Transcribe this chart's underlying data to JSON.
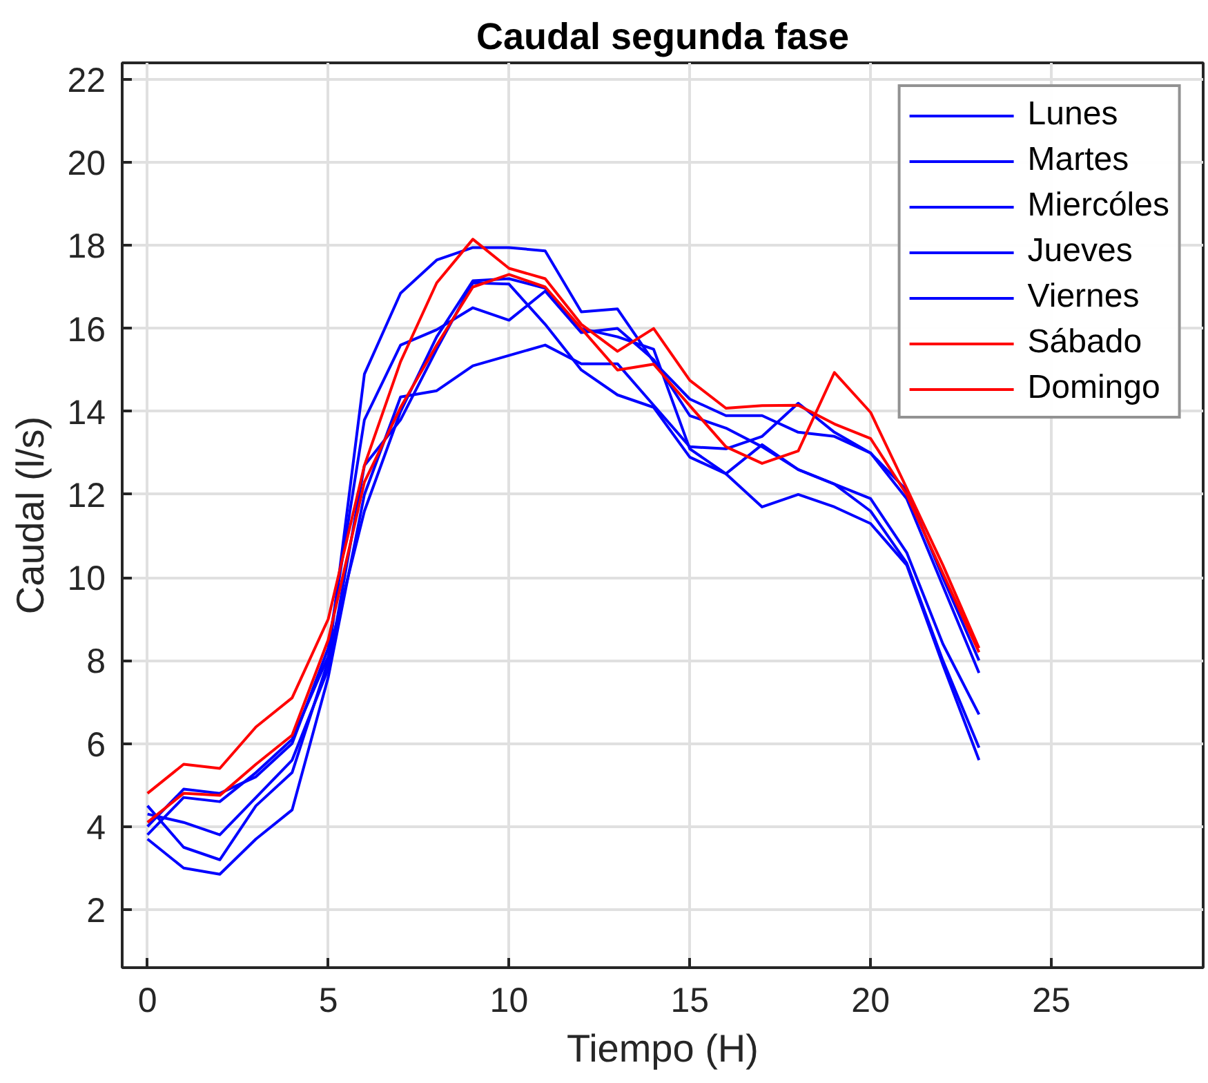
{
  "chart_data": {
    "type": "line",
    "title": "Caudal segunda fase",
    "xlabel": "Tiempo (H)",
    "ylabel": "Caudal (l/s)",
    "x": [
      0,
      1,
      2,
      3,
      4,
      5,
      6,
      7,
      8,
      9,
      10,
      11,
      12,
      13,
      14,
      15,
      16,
      17,
      18,
      19,
      20,
      21,
      22,
      23
    ],
    "xlim": [
      -0.7,
      29.2
    ],
    "ylim": [
      0.6,
      22.4
    ],
    "xticks": [
      0,
      5,
      10,
      15,
      20,
      25
    ],
    "yticks": [
      2,
      4,
      6,
      8,
      10,
      12,
      14,
      16,
      18,
      20,
      22
    ],
    "grid": true,
    "legend": "top right",
    "series": [
      {
        "name": "Lunes",
        "color": "#0000ff",
        "values": [
          4.5,
          3.5,
          3.2,
          4.5,
          5.3,
          8.0,
          14.9,
          16.85,
          17.65,
          17.95,
          17.95,
          17.87,
          16.4,
          16.47,
          15.2,
          14.3,
          13.9,
          13.9,
          13.5,
          13.4,
          13.0,
          11.9,
          9.8,
          7.7
        ]
      },
      {
        "name": "Martes",
        "color": "#0000ff",
        "values": [
          3.7,
          3.0,
          2.85,
          3.7,
          4.4,
          7.6,
          12.0,
          14.35,
          14.5,
          15.1,
          15.35,
          15.6,
          15.15,
          15.15,
          14.15,
          13.15,
          13.1,
          13.4,
          14.2,
          13.5,
          13.0,
          12.1,
          10.0,
          8.0
        ]
      },
      {
        "name": "Miercóles",
        "color": "#0000ff",
        "values": [
          4.0,
          4.9,
          4.8,
          5.2,
          6.0,
          8.3,
          13.8,
          15.6,
          15.97,
          16.5,
          16.2,
          16.9,
          15.9,
          16.0,
          15.25,
          13.9,
          13.6,
          13.15,
          12.6,
          12.25,
          11.9,
          10.6,
          8.4,
          6.7
        ]
      },
      {
        "name": "Jueves",
        "color": "#0000ff",
        "values": [
          4.3,
          4.1,
          3.8,
          4.7,
          5.6,
          7.8,
          12.7,
          13.8,
          15.5,
          17.1,
          17.07,
          16.1,
          15.0,
          14.4,
          14.1,
          12.9,
          12.5,
          13.2,
          12.6,
          12.25,
          11.6,
          10.35,
          8.0,
          5.9
        ]
      },
      {
        "name": "Viernes",
        "color": "#0000ff",
        "values": [
          3.8,
          4.7,
          4.6,
          5.3,
          6.1,
          8.1,
          11.6,
          14.0,
          15.8,
          17.15,
          17.2,
          16.97,
          16.0,
          15.8,
          15.5,
          13.1,
          12.5,
          11.7,
          12.0,
          11.7,
          11.3,
          10.3,
          7.9,
          5.6
        ]
      },
      {
        "name": "Sábado",
        "color": "#ff0000",
        "values": [
          4.8,
          5.5,
          5.4,
          6.4,
          7.1,
          9.0,
          12.7,
          15.2,
          17.1,
          18.15,
          17.45,
          17.2,
          16.1,
          15.45,
          16.0,
          14.75,
          14.08,
          14.14,
          14.15,
          13.7,
          13.35,
          12.0,
          10.1,
          8.2
        ]
      },
      {
        "name": "Domingo",
        "color": "#ff0000",
        "values": [
          4.1,
          4.8,
          4.75,
          5.5,
          6.2,
          8.5,
          12.3,
          14.1,
          15.6,
          17.0,
          17.3,
          17.0,
          16.0,
          15.0,
          15.14,
          14.14,
          13.15,
          12.75,
          13.05,
          14.94,
          13.98,
          12.15,
          10.3,
          8.3
        ]
      }
    ]
  }
}
